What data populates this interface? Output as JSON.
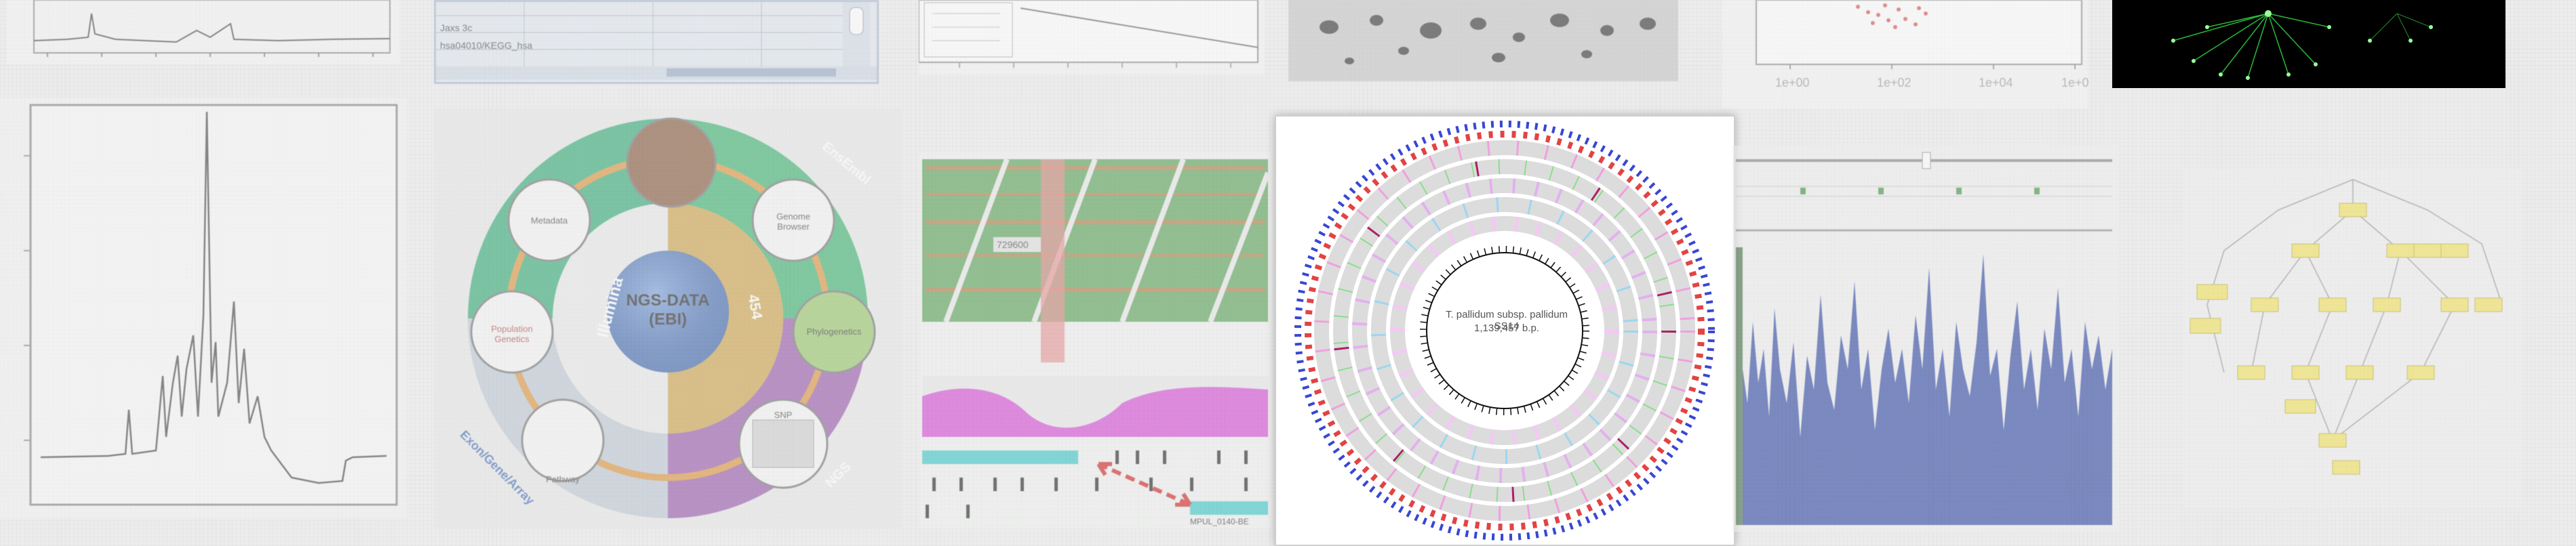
{
  "gallery": {
    "items": [
      {
        "id": "spectrum-line-plot"
      },
      {
        "id": "ngs-data-wheel",
        "labels": {
          "center": "NGS-DATA (EBI)",
          "platform_left": "Illumina",
          "platform_right": "454",
          "sector_top_right": "EnsEmbl",
          "sector_bottom_right": "NGS",
          "sector_bottom_left": "Exon/Gene/Array",
          "node_top_left": "Metadata",
          "node_top_right": "Genome Browser",
          "node_right": "Phylogenetics",
          "node_left": "Population Genetics",
          "node_bottom_right": "SNP",
          "node_bottom_left": "Pathway"
        }
      },
      {
        "id": "genome-alignment-view",
        "labels": {
          "position": "729600",
          "gene": "MPUL_0140-BE"
        }
      },
      {
        "id": "circular-genome-map",
        "labels": {
          "organism": "T. pallidum subsp. pallidum SS14",
          "size": "1,139,457 b.p."
        }
      },
      {
        "id": "coverage-histogram"
      },
      {
        "id": "yellow-network-diagram"
      }
    ],
    "top_row": [
      {
        "id": "top-line-plot"
      },
      {
        "id": "top-table-window",
        "labels": {
          "row1": "Jaxs 3c",
          "row2": "hsa04010/KEGG_hsa"
        }
      },
      {
        "id": "top-regression-plot"
      },
      {
        "id": "top-gel-image"
      },
      {
        "id": "top-scatter-plot",
        "labels": {
          "tick1": "1e+00",
          "tick2": "1e+02",
          "tick3": "1e+04",
          "tick4": "1e+0"
        }
      },
      {
        "id": "top-green-graph"
      }
    ]
  }
}
